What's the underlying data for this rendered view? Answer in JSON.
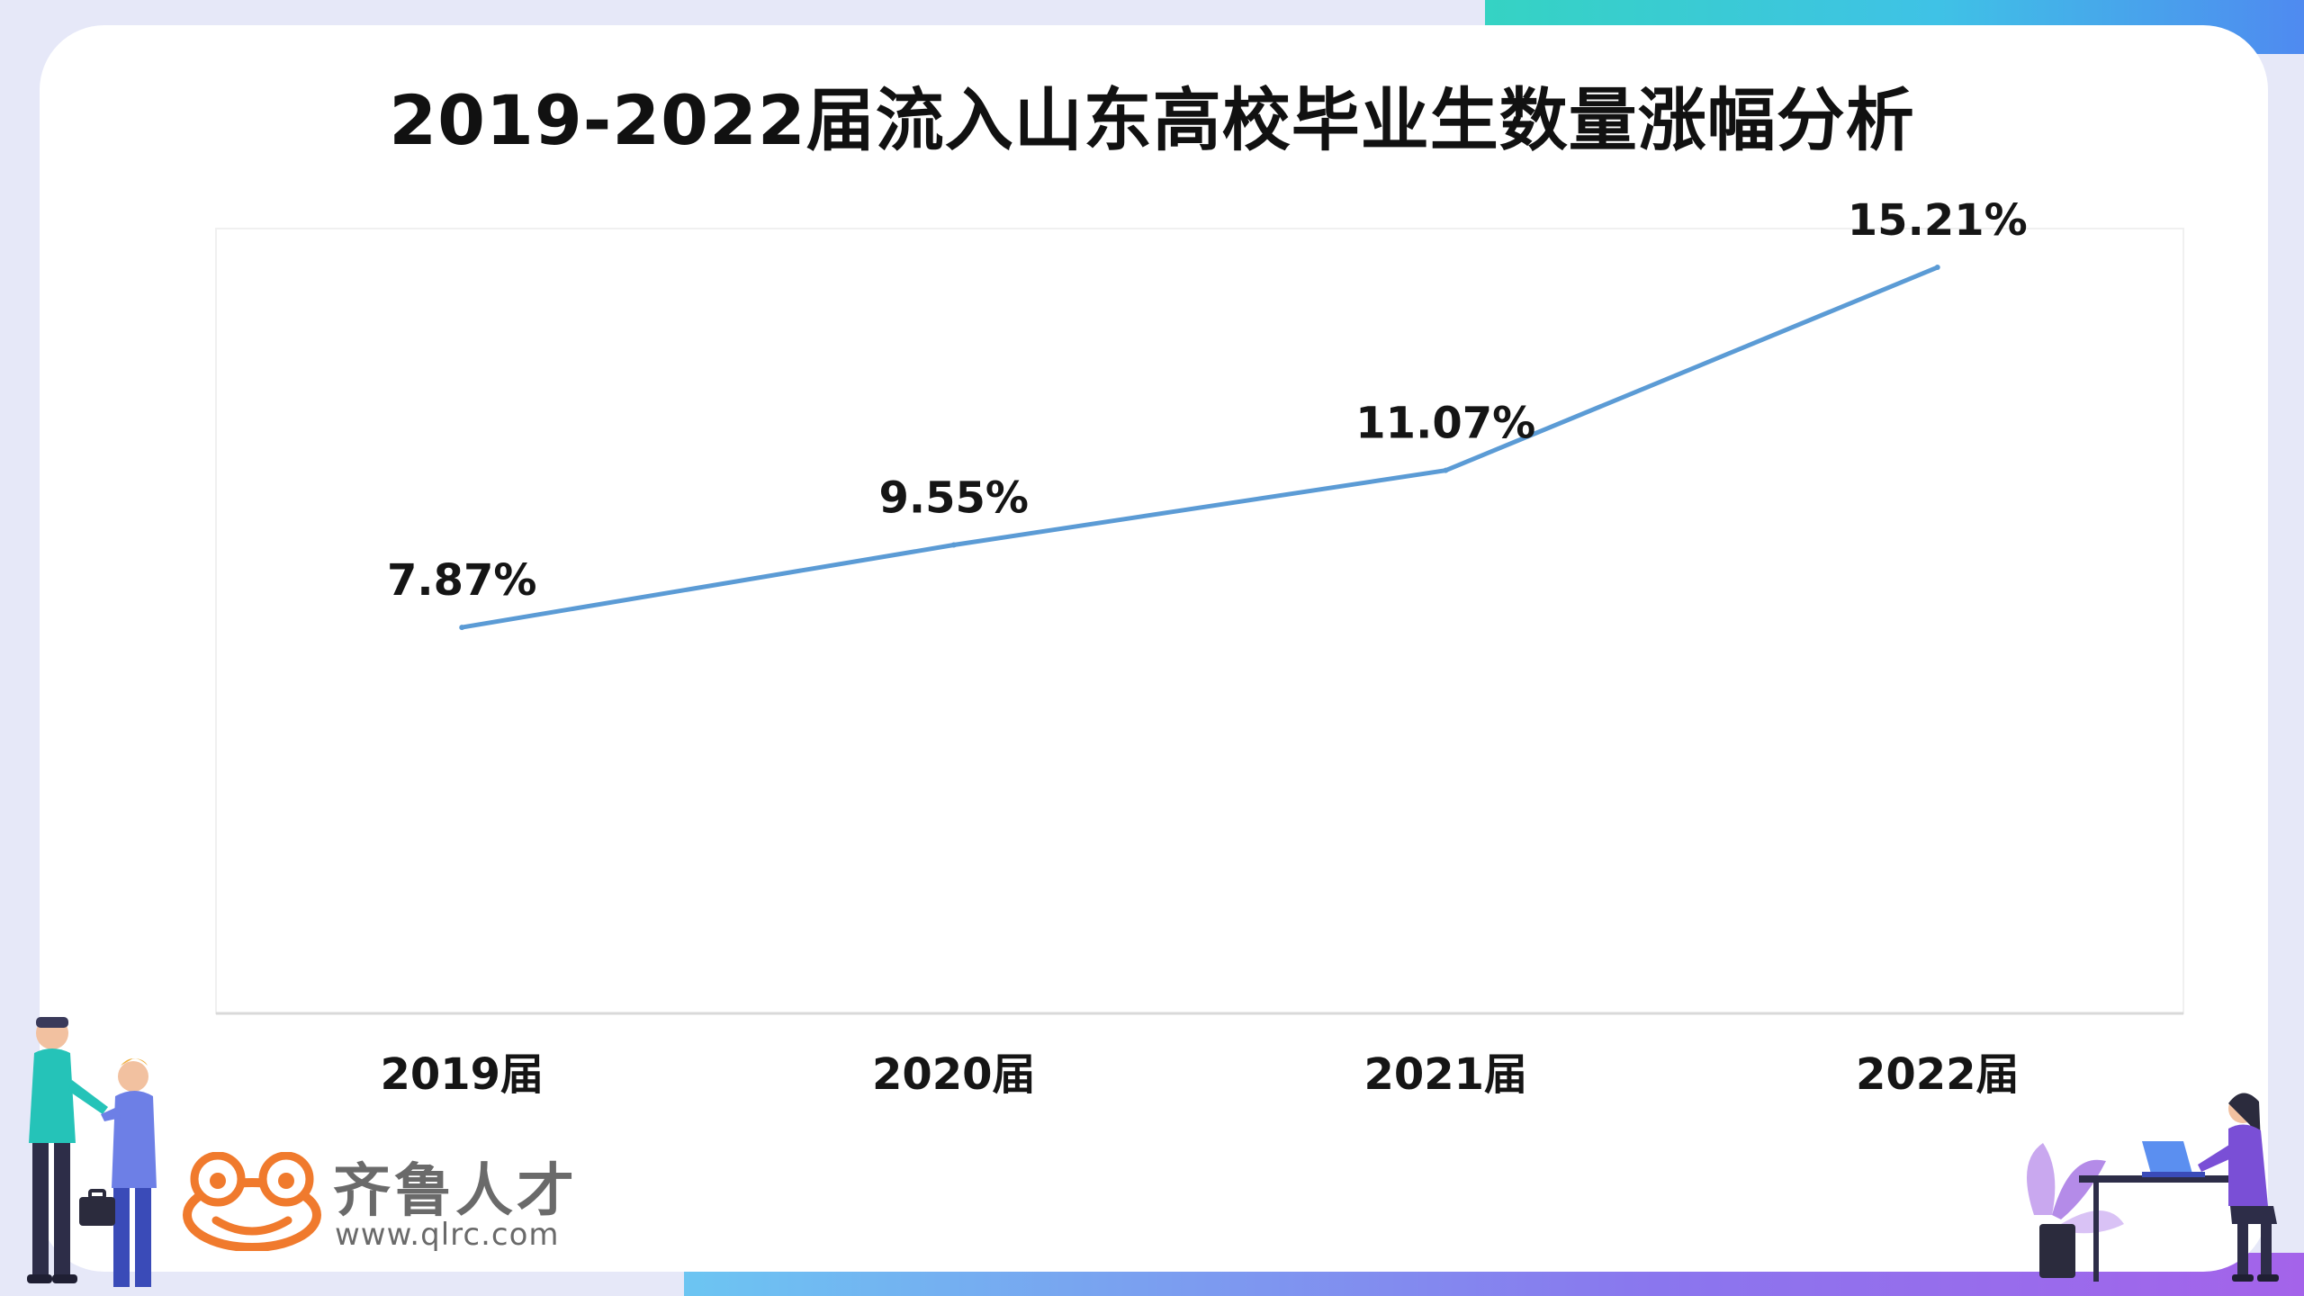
{
  "slide": {
    "title": "2019-2022届流入山东高校毕业生数量涨幅分析",
    "colors": {
      "line": "#5b9bd5",
      "accent_teal": "#35d3c3",
      "accent_purple": "#a463ea"
    }
  },
  "chart_data": {
    "type": "line",
    "categories": [
      "2019届",
      "2020届",
      "2021届",
      "2022届"
    ],
    "series": [
      {
        "values": [
          7.87,
          9.55,
          11.07,
          15.21
        ]
      }
    ],
    "data_labels": [
      "7.87%",
      "9.55%",
      "11.07%",
      "15.21%"
    ],
    "xlabel": "",
    "ylabel": "",
    "ylim": [
      0,
      16
    ],
    "grid": false,
    "legend": "none"
  },
  "logo": {
    "name": "齐鲁人才",
    "url": "www.qlrc.com",
    "icon": "frog-icon"
  },
  "decorations": {
    "left": "business-handshake-illustration",
    "right": "woman-at-laptop-illustration"
  }
}
